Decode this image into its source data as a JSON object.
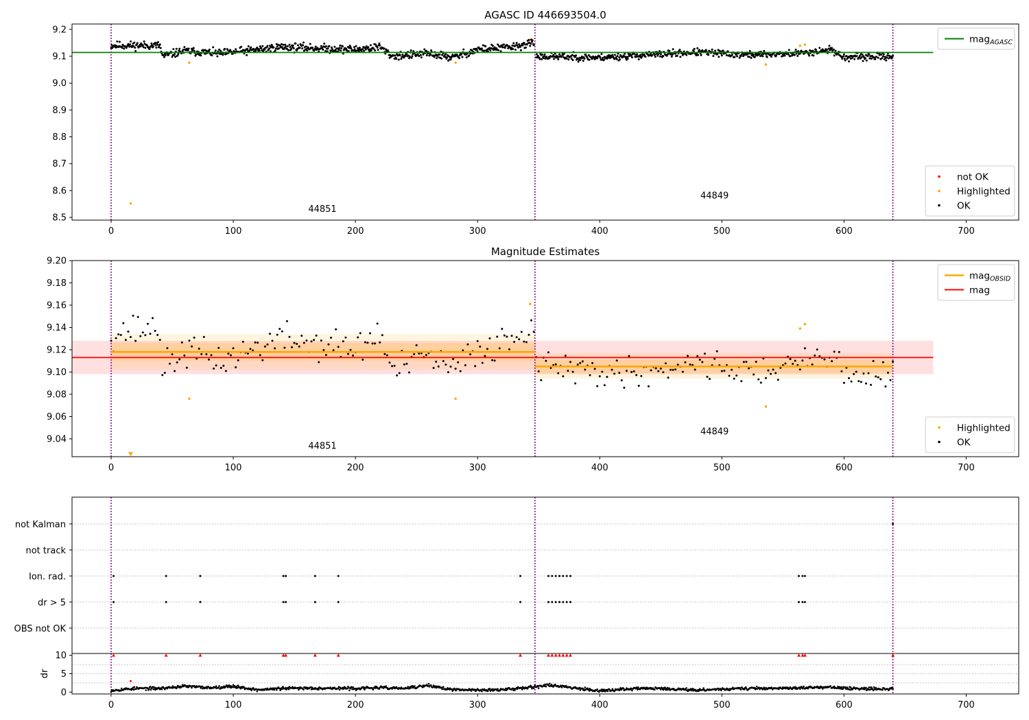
{
  "chart_data": [
    {
      "type": "scatter",
      "title": "AGASC ID 446693504.0",
      "xlim": [
        -32,
        743
      ],
      "ylim": [
        8.49,
        9.22
      ],
      "xticks": [
        0,
        100,
        200,
        300,
        400,
        500,
        600,
        700
      ],
      "yticks": [
        8.5,
        8.6,
        8.7,
        8.8,
        8.9,
        9.0,
        9.1,
        9.2
      ],
      "ytick_decimals": 1,
      "obsid_boundaries": [
        0,
        347,
        640
      ],
      "obsid_labels": [
        {
          "text": "44851",
          "x": 173,
          "y": 8.52
        },
        {
          "text": "44849",
          "x": 494,
          "y": 8.57
        }
      ],
      "reference_lines": [
        {
          "name": "mag_AGASC",
          "color": "#008000",
          "y": 9.114,
          "x": [
            -32,
            673
          ]
        }
      ],
      "series": [
        {
          "name": "not OK",
          "color": "#ff0000",
          "points": []
        },
        {
          "name": "Highlighted",
          "color": "#ffa500",
          "points": [
            [
              16,
              8.552
            ],
            [
              64,
              9.076
            ],
            [
              282,
              9.076
            ],
            [
              343,
              9.161
            ],
            [
              536,
              9.069
            ],
            [
              564,
              9.139
            ],
            [
              568,
              9.143
            ]
          ]
        },
        {
          "name": "OK",
          "color": "#000000",
          "generated_segments": [
            {
              "x_start": 0,
              "x_end": 346,
              "step": 0.5,
              "anchors": [
                [
                  0,
                  9.14
                ],
                [
                  40,
                  9.14
                ],
                [
                  42,
                  9.1
                ],
                [
                  60,
                  9.12
                ],
                [
                  90,
                  9.11
                ],
                [
                  140,
                  9.135
                ],
                [
                  200,
                  9.125
                ],
                [
                  220,
                  9.135
                ],
                [
                  230,
                  9.1
                ],
                [
                  260,
                  9.11
                ],
                [
                  280,
                  9.095
                ],
                [
                  300,
                  9.125
                ],
                [
                  330,
                  9.135
                ],
                [
                  346,
                  9.15
                ]
              ],
              "noise": 0.015,
              "seed": 11
            },
            {
              "x_start": 348,
              "x_end": 640,
              "step": 0.5,
              "anchors": [
                [
                  348,
                  9.1
                ],
                [
                  400,
                  9.095
                ],
                [
                  440,
                  9.105
                ],
                [
                  480,
                  9.115
                ],
                [
                  520,
                  9.105
                ],
                [
                  560,
                  9.11
                ],
                [
                  590,
                  9.125
                ],
                [
                  600,
                  9.095
                ],
                [
                  640,
                  9.1
                ]
              ],
              "noise": 0.013,
              "seed": 23
            }
          ]
        }
      ],
      "legends": [
        {
          "position": "upper-right",
          "entries": [
            {
              "label": "mag",
              "sub": "AGASC",
              "kind": "line",
              "color": "#008000"
            }
          ]
        },
        {
          "position": "lower-right",
          "entries": [
            {
              "label": "not OK",
              "kind": "dot",
              "color": "#ff0000"
            },
            {
              "label": "Highlighted",
              "kind": "dot",
              "color": "#ffa500"
            },
            {
              "label": "OK",
              "kind": "dot",
              "color": "#000000"
            }
          ]
        }
      ]
    },
    {
      "type": "scatter",
      "title": "Magnitude Estimates",
      "xlim": [
        -32,
        743
      ],
      "ylim": [
        9.024,
        9.2
      ],
      "xticks": [
        0,
        100,
        200,
        300,
        400,
        500,
        600,
        700
      ],
      "yticks": [
        9.04,
        9.06,
        9.08,
        9.1,
        9.12,
        9.14,
        9.16,
        9.18,
        9.2
      ],
      "ytick_decimals": 2,
      "obsid_boundaries": [
        0,
        347,
        640
      ],
      "obsid_labels": [
        {
          "text": "44851",
          "x": 173,
          "y": 9.031
        },
        {
          "text": "44849",
          "x": 494,
          "y": 9.044
        }
      ],
      "bands": [
        {
          "name": "mag band",
          "color": "#ff0000",
          "opacity": 0.12,
          "x": [
            -32,
            673
          ],
          "y": [
            9.098,
            9.128
          ]
        },
        {
          "name": "44851 mag_OBSID band (outer)",
          "color": "#ffa500",
          "opacity": 0.12,
          "x": [
            0,
            347
          ],
          "y": [
            9.102,
            9.134
          ]
        },
        {
          "name": "44851 mag_OBSID band (inner)",
          "color": "#ffa500",
          "opacity": 0.18,
          "x": [
            0,
            347
          ],
          "y": [
            9.11,
            9.126
          ]
        },
        {
          "name": "44849 mag_OBSID band (outer)",
          "color": "#ffa500",
          "opacity": 0.12,
          "x": [
            347,
            640
          ],
          "y": [
            9.094,
            9.117
          ]
        },
        {
          "name": "44849 mag_OBSID band (inner)",
          "color": "#ffa500",
          "opacity": 0.18,
          "x": [
            347,
            640
          ],
          "y": [
            9.099,
            9.111
          ]
        }
      ],
      "reference_lines": [
        {
          "name": "mag",
          "color": "#ff0000",
          "y": 9.113,
          "x": [
            -32,
            673
          ]
        },
        {
          "name": "mag_OBSID 44851",
          "color": "#ffa500",
          "y": 9.118,
          "x": [
            0,
            347
          ],
          "width": 2.5
        },
        {
          "name": "mag_OBSID 44849",
          "color": "#ffa500",
          "y": 9.105,
          "x": [
            347,
            640
          ],
          "width": 2.5
        }
      ],
      "series": [
        {
          "name": "Highlighted",
          "color": "#ffa500",
          "points": [
            [
              64,
              9.076
            ],
            [
              282,
              9.076
            ],
            [
              343,
              9.161
            ],
            [
              536,
              9.069
            ],
            [
              564,
              9.139
            ],
            [
              568,
              9.143
            ]
          ]
        },
        {
          "name": "Highlighted (below range)",
          "color": "#ffa500",
          "marker": "triangle-down",
          "points": [
            [
              16,
              9.026
            ]
          ]
        },
        {
          "name": "OK",
          "color": "#000000",
          "generated_segments": [
            {
              "x_start": 0,
              "x_end": 346,
              "step": 2,
              "anchors": [
                [
                  0,
                  9.135
                ],
                [
                  40,
                  9.14
                ],
                [
                  42,
                  9.1
                ],
                [
                  60,
                  9.12
                ],
                [
                  90,
                  9.11
                ],
                [
                  140,
                  9.13
                ],
                [
                  200,
                  9.12
                ],
                [
                  220,
                  9.135
                ],
                [
                  230,
                  9.1
                ],
                [
                  260,
                  9.115
                ],
                [
                  280,
                  9.1
                ],
                [
                  300,
                  9.12
                ],
                [
                  330,
                  9.13
                ],
                [
                  346,
                  9.145
                ]
              ],
              "noise": 0.015,
              "seed": 37
            },
            {
              "x_start": 348,
              "x_end": 640,
              "step": 2,
              "anchors": [
                [
                  348,
                  9.105
                ],
                [
                  400,
                  9.1
                ],
                [
                  440,
                  9.1
                ],
                [
                  480,
                  9.11
                ],
                [
                  520,
                  9.1
                ],
                [
                  560,
                  9.105
                ],
                [
                  590,
                  9.12
                ],
                [
                  600,
                  9.095
                ],
                [
                  640,
                  9.1
                ]
              ],
              "noise": 0.013,
              "seed": 41
            }
          ]
        }
      ],
      "legends": [
        {
          "position": "upper-right",
          "entries": [
            {
              "label": "mag",
              "sub": "OBSID",
              "kind": "line",
              "color": "#ffa500",
              "width": 2.5
            },
            {
              "label": "mag",
              "kind": "line",
              "color": "#ff0000"
            }
          ]
        },
        {
          "position": "lower-right",
          "entries": [
            {
              "label": "Highlighted",
              "kind": "dot",
              "color": "#ffa500"
            },
            {
              "label": "OK",
              "kind": "dot",
              "color": "#000000"
            }
          ]
        }
      ]
    },
    {
      "type": "scatter",
      "title": "",
      "xlim": [
        -32,
        743
      ],
      "categories": [
        "not Kalman",
        "not track",
        "Ion. rad.",
        "dr > 5",
        "OBS not OK"
      ],
      "obsid_boundaries": [
        0,
        347,
        640
      ],
      "flags": [
        {
          "category": "not Kalman",
          "x": [
            640
          ]
        },
        {
          "category": "Ion. rad.",
          "x": [
            2,
            45,
            73,
            141,
            143,
            167,
            186,
            335,
            358,
            361,
            364,
            367,
            370,
            373,
            376,
            563,
            566,
            568
          ]
        },
        {
          "category": "dr > 5",
          "x": [
            2,
            45,
            73,
            141,
            143,
            167,
            186,
            335,
            358,
            361,
            364,
            367,
            370,
            373,
            376,
            563,
            566,
            568
          ]
        }
      ]
    },
    {
      "type": "scatter",
      "title": "",
      "ylabel": "dr",
      "xlim": [
        -32,
        743
      ],
      "ylim": [
        -0.5,
        10.5
      ],
      "xticks": [
        0,
        100,
        200,
        300,
        400,
        500,
        600,
        700
      ],
      "yticks": [
        0,
        5,
        10
      ],
      "ytick_decimals": 0,
      "obsid_boundaries": [
        0,
        347,
        640
      ],
      "clipped_markers": {
        "color": "#ff0000",
        "y": 10,
        "x": [
          2,
          45,
          73,
          141,
          143,
          167,
          186,
          335,
          358,
          361,
          364,
          367,
          370,
          373,
          376,
          563,
          566,
          568,
          640
        ]
      },
      "series": [
        {
          "name": "outlier",
          "color": "#ff0000",
          "points": [
            [
              16,
              3.0
            ]
          ]
        },
        {
          "name": "dr",
          "color": "#000000",
          "generated_segments": [
            {
              "x_start": 0,
              "x_end": 640,
              "step": 0.5,
              "anchors": [
                [
                  0,
                  0.5
                ],
                [
                  20,
                  1.0
                ],
                [
                  40,
                  1.0
                ],
                [
                  60,
                  1.6
                ],
                [
                  80,
                  1.2
                ],
                [
                  100,
                  1.6
                ],
                [
                  120,
                  0.6
                ],
                [
                  140,
                  1.0
                ],
                [
                  160,
                  1.1
                ],
                [
                  200,
                  1.0
                ],
                [
                  220,
                  1.2
                ],
                [
                  240,
                  1.0
                ],
                [
                  260,
                  1.8
                ],
                [
                  280,
                  0.6
                ],
                [
                  320,
                  0.6
                ],
                [
                  340,
                  1.3
                ],
                [
                  360,
                  1.9
                ],
                [
                  400,
                  0.4
                ],
                [
                  440,
                  1.1
                ],
                [
                  480,
                  0.6
                ],
                [
                  520,
                  1.0
                ],
                [
                  560,
                  1.1
                ],
                [
                  590,
                  1.4
                ],
                [
                  600,
                  1.0
                ],
                [
                  640,
                  0.8
                ]
              ],
              "noise": 0.4,
              "seed": 53,
              "min": 0
            }
          ]
        }
      ]
    }
  ]
}
